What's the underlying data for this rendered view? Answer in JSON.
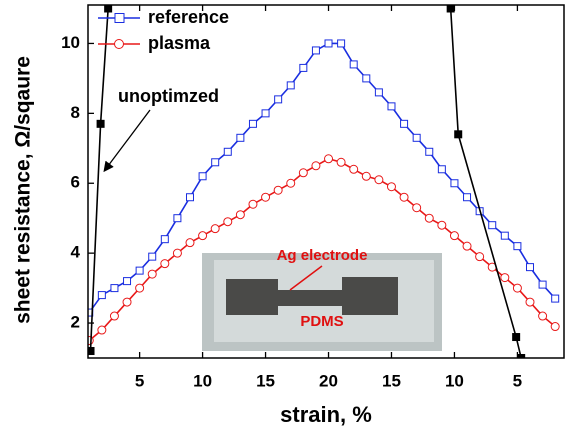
{
  "chart_data": {
    "type": "line",
    "x_label": "strain, %",
    "y_label": "sheet resistance, Ω/sqaure",
    "xlim": [
      0.9,
      38.7
    ],
    "ylim": [
      1.0,
      11.1
    ],
    "xticks": [
      5,
      10,
      15,
      20,
      {
        "value": 25,
        "label": "15"
      },
      {
        "value": 30,
        "label": "10"
      },
      {
        "value": 35,
        "label": "5"
      }
    ],
    "yticks": [
      2,
      4,
      6,
      8,
      10
    ],
    "legend": "top-left",
    "annotations": [
      "unoptimzed",
      "Ag electrode",
      "PDMS"
    ],
    "series": [
      {
        "name": "reference",
        "color": "#1a2ee0",
        "marker": "square",
        "x": [
          1,
          2,
          3,
          4,
          5,
          6,
          7,
          8,
          9,
          10,
          11,
          12,
          13,
          14,
          15,
          16,
          17,
          18,
          19,
          20,
          21,
          22,
          23,
          24,
          25,
          26,
          27,
          28,
          29,
          30,
          31,
          32,
          33,
          34,
          35,
          36,
          37,
          38
        ],
        "values": [
          2.3,
          2.8,
          3.0,
          3.2,
          3.5,
          3.9,
          4.4,
          5.0,
          5.6,
          6.2,
          6.6,
          6.9,
          7.3,
          7.7,
          8.0,
          8.4,
          8.8,
          9.3,
          9.8,
          10.0,
          10.0,
          9.4,
          9.0,
          8.6,
          8.2,
          7.7,
          7.3,
          6.9,
          6.4,
          6.0,
          5.6,
          5.2,
          4.8,
          4.5,
          4.2,
          3.6,
          3.1,
          2.7
        ]
      },
      {
        "name": "plasma",
        "color": "#e81818",
        "marker": "circle",
        "x": [
          1,
          2,
          3,
          4,
          5,
          6,
          7,
          8,
          9,
          10,
          11,
          12,
          13,
          14,
          15,
          16,
          17,
          18,
          19,
          20,
          21,
          22,
          23,
          24,
          25,
          26,
          27,
          28,
          29,
          30,
          31,
          32,
          33,
          34,
          35,
          36,
          37,
          38
        ],
        "values": [
          1.5,
          1.8,
          2.2,
          2.6,
          3.0,
          3.4,
          3.7,
          4.0,
          4.3,
          4.5,
          4.7,
          4.9,
          5.1,
          5.4,
          5.6,
          5.8,
          6.0,
          6.3,
          6.5,
          6.7,
          6.6,
          6.4,
          6.2,
          6.1,
          5.9,
          5.6,
          5.3,
          5.0,
          4.8,
          4.5,
          4.2,
          3.9,
          3.6,
          3.3,
          3.0,
          2.6,
          2.2,
          1.9
        ]
      },
      {
        "color": "#000000",
        "marker": "filled-square",
        "x": [
          1.1,
          1.9,
          2.5,
          null,
          29.7,
          30.3,
          34.9,
          35.3
        ],
        "values": [
          1.2,
          7.7,
          11.0,
          null,
          11.0,
          7.4,
          1.6,
          1.0
        ]
      }
    ]
  }
}
